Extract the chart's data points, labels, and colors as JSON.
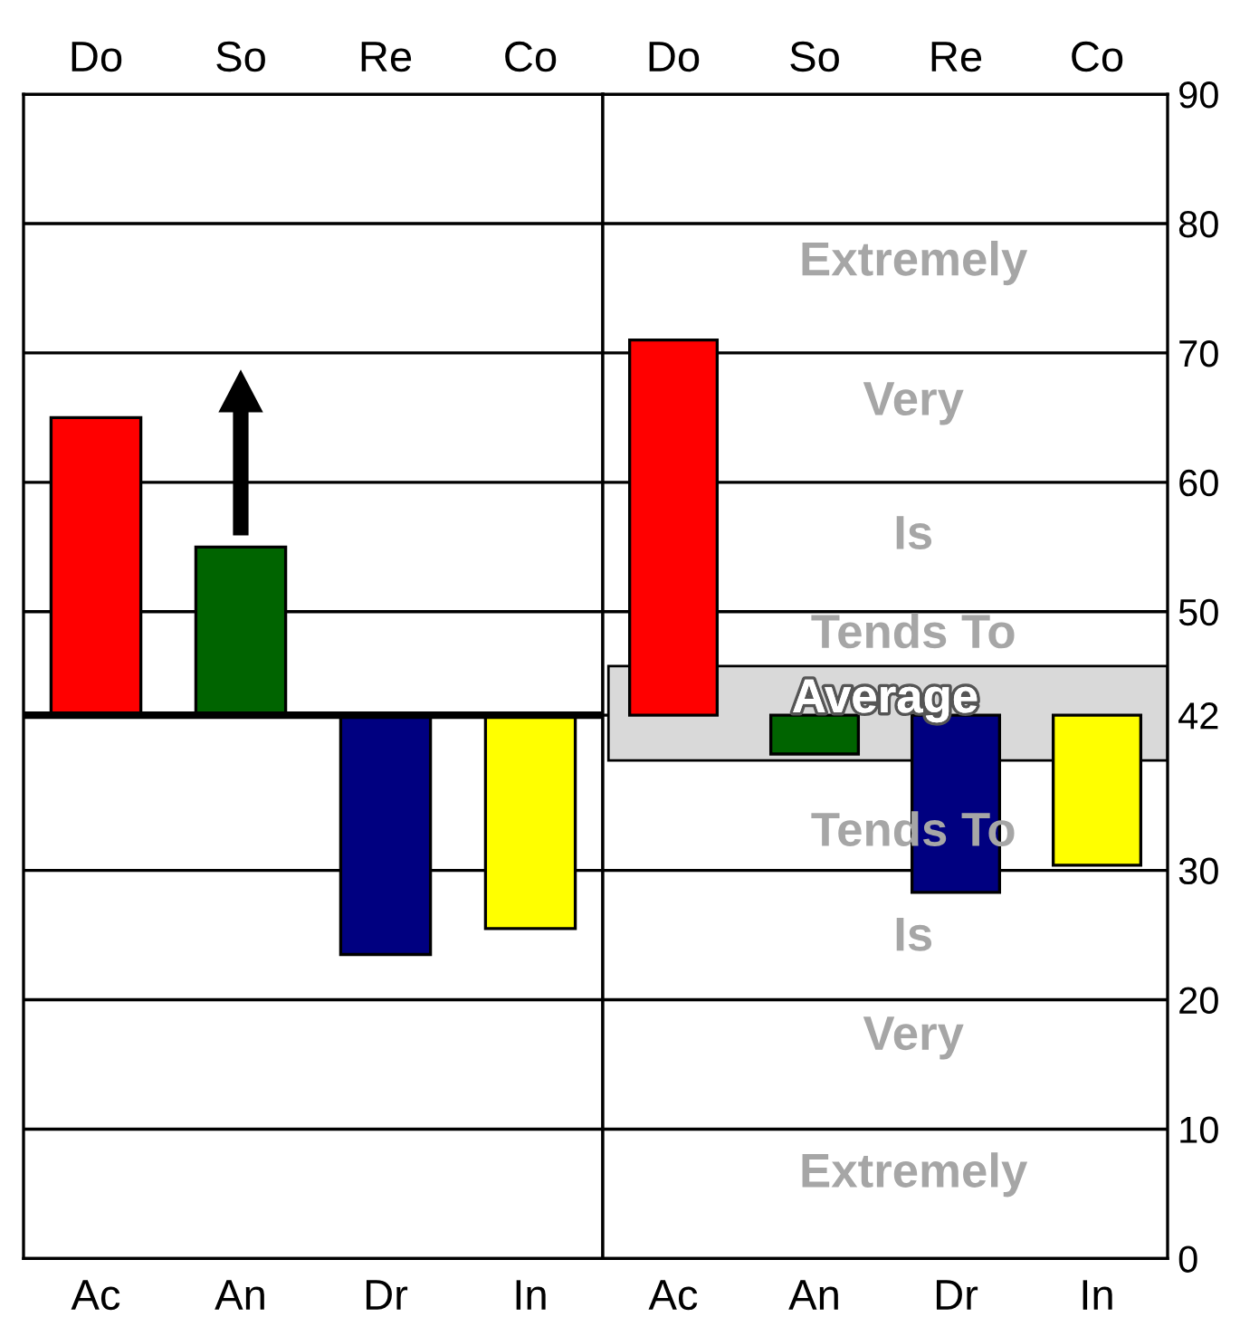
{
  "chart_data": [
    {
      "type": "bar",
      "categories": [
        "Ac",
        "An",
        "Dr",
        "In"
      ],
      "base": [
        42,
        42,
        23.5,
        25.5
      ],
      "values": [
        23,
        13,
        18.5,
        16.5
      ],
      "colors": [
        "#ff0000",
        "#006400",
        "#000080",
        "#ffff00"
      ],
      "annotations": [
        "Do",
        "So",
        "Re",
        "Co"
      ],
      "ylim": [
        0,
        90
      ],
      "yticks": [
        0,
        10,
        20,
        30,
        42,
        50,
        60,
        70,
        80,
        90
      ],
      "grid": "y",
      "tick_labels": "x",
      "ref_lines": [
        {
          "axis": "y",
          "value": 42
        }
      ]
    },
    {
      "type": "bar",
      "categories": [
        "Ac",
        "An",
        "Dr",
        "In"
      ],
      "base": [
        42,
        39,
        28.3,
        30.4
      ],
      "values": [
        29,
        3,
        13.7,
        11.6
      ],
      "colors": [
        "#ff0000",
        "#006400",
        "#000080",
        "#ffff00"
      ],
      "annotations": [
        "Do",
        "So",
        "Re",
        "Co",
        "Extremely",
        "Very",
        "Is",
        "Tends To",
        "Tends To",
        "Is",
        "Very",
        "Extremely"
      ],
      "bands": [
        {
          "axis": "y",
          "from": 38.5,
          "to": 45.8,
          "label": "Average",
          "color": "#d9d9d9"
        }
      ],
      "ylim": [
        0,
        90
      ],
      "yticks": [
        0,
        10,
        20,
        30,
        42,
        50,
        60,
        70,
        80,
        90
      ],
      "grid": "y"
    }
  ]
}
